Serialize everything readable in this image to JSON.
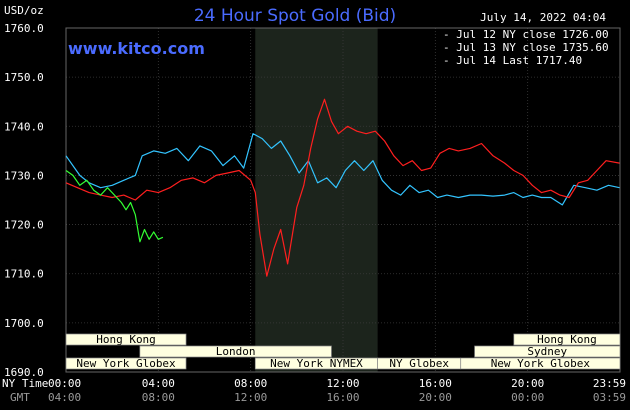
{
  "header": {
    "currency": "USD/oz",
    "title": "24 Hour Spot Gold (Bid)",
    "timestamp": "July 14, 2022 04:04",
    "brand": "www.kitco.com"
  },
  "time_labels": {
    "ny_time_label": "NY Time",
    "gmt_label": "GMT",
    "ny": [
      "00:00",
      "04:00",
      "08:00",
      "12:00",
      "16:00",
      "20:00",
      "23:59"
    ],
    "gmt": [
      "04:00",
      "08:00",
      "12:00",
      "16:00",
      "20:00",
      "00:00",
      "03:59"
    ]
  },
  "sessions": [
    {
      "name": "Hong Kong",
      "start": 0,
      "end": 5.2,
      "row": 0
    },
    {
      "name": "Hong Kong",
      "start": 19.4,
      "end": 24,
      "row": 0
    },
    {
      "name": "London",
      "start": 3.2,
      "end": 11.5,
      "row": 1
    },
    {
      "name": "Sydney",
      "start": 17.7,
      "end": 24,
      "row": 1
    },
    {
      "name": "New York Globex",
      "start": 0,
      "end": 5.2,
      "row": 2
    },
    {
      "name": "New York NYMEX",
      "start": 8.2,
      "end": 13.5,
      "row": 2
    },
    {
      "name": "NY Globex",
      "start": 13.5,
      "end": 17.1,
      "row": 2
    },
    {
      "name": "New York Globex",
      "start": 17.1,
      "end": 24,
      "row": 2
    }
  ],
  "colors": {
    "background": "#000000",
    "plot_bg": "#000000",
    "shade": "#1c241c",
    "grid": "#3a3a3a",
    "jul12": "#33c4ff",
    "jul13": "#ff1f1f",
    "jul14": "#33ff33",
    "title": "#4a6bff"
  },
  "chart_data": {
    "type": "line",
    "title": "24 Hour Spot Gold (Bid)",
    "ylabel": "USD/oz",
    "ylim": [
      1690,
      1760
    ],
    "yticks": [
      "1760.0",
      "1750.0",
      "1740.0",
      "1730.0",
      "1720.0",
      "1710.0",
      "1700.0",
      "1690.0"
    ],
    "xlim": [
      0,
      24
    ],
    "x_unit": "hours since 00:00 NY Time",
    "grid": true,
    "shaded_hours": [
      8.2,
      13.5
    ],
    "legend": [
      {
        "label": "Jul 12 NY close 1726.00",
        "color": "#33c4ff"
      },
      {
        "label": "Jul 13 NY close 1735.60",
        "color": "#ff1f1f"
      },
      {
        "label": "Jul 14 Last 1717.40",
        "color": "#33ff33"
      }
    ],
    "series": [
      {
        "name": "Jul 12",
        "color": "#33c4ff",
        "x": [
          0,
          0.3,
          0.6,
          1.0,
          1.5,
          2.0,
          2.5,
          3.0,
          3.3,
          3.8,
          4.3,
          4.8,
          5.3,
          5.8,
          6.3,
          6.8,
          7.3,
          7.7,
          8.1,
          8.5,
          8.9,
          9.3,
          9.7,
          10.1,
          10.5,
          10.9,
          11.3,
          11.7,
          12.1,
          12.5,
          12.9,
          13.3,
          13.7,
          14.1,
          14.5,
          14.9,
          15.3,
          15.7,
          16.1,
          16.5,
          17.0,
          17.5,
          18.0,
          18.5,
          19.0,
          19.4,
          19.8,
          20.2,
          20.6,
          21.0,
          21.5,
          22.0,
          22.5,
          23.0,
          23.5,
          23.98
        ],
        "y": [
          1734.0,
          1732.0,
          1730.0,
          1728.5,
          1727.5,
          1728.0,
          1729.0,
          1730.0,
          1734.0,
          1735.0,
          1734.5,
          1735.5,
          1733.0,
          1736.0,
          1735.0,
          1732.0,
          1734.0,
          1731.5,
          1738.5,
          1737.5,
          1735.5,
          1737.0,
          1734.0,
          1730.5,
          1733.0,
          1728.5,
          1729.5,
          1727.5,
          1731.0,
          1733.0,
          1731.0,
          1733.0,
          1729.0,
          1727.0,
          1726.0,
          1728.0,
          1726.5,
          1727.0,
          1725.5,
          1726.0,
          1725.5,
          1726.0,
          1726.0,
          1725.8,
          1726.0,
          1726.5,
          1725.5,
          1726.0,
          1725.5,
          1725.5,
          1724.0,
          1728.0,
          1727.5,
          1727.0,
          1728.0,
          1727.5
        ]
      },
      {
        "name": "Jul 13",
        "color": "#ff1f1f",
        "x": [
          0,
          0.5,
          1.0,
          1.5,
          2.0,
          2.5,
          3.0,
          3.5,
          4.0,
          4.5,
          5.0,
          5.5,
          6.0,
          6.5,
          7.0,
          7.5,
          8.0,
          8.2,
          8.4,
          8.7,
          9.0,
          9.3,
          9.6,
          10.0,
          10.3,
          10.6,
          10.9,
          11.2,
          11.5,
          11.8,
          12.2,
          12.6,
          13.0,
          13.4,
          13.8,
          14.2,
          14.6,
          15.0,
          15.4,
          15.8,
          16.2,
          16.6,
          17.0,
          17.5,
          18.0,
          18.5,
          19.0,
          19.4,
          19.8,
          20.2,
          20.6,
          21.0,
          21.4,
          21.8,
          22.2,
          22.6,
          23.0,
          23.4,
          23.98
        ],
        "y": [
          1728.5,
          1727.5,
          1726.5,
          1726.0,
          1725.5,
          1726.0,
          1725.0,
          1727.0,
          1726.5,
          1727.5,
          1729.0,
          1729.5,
          1728.5,
          1730.0,
          1730.5,
          1731.0,
          1729.0,
          1726.5,
          1718.0,
          1709.5,
          1715.0,
          1719.0,
          1712.0,
          1723.5,
          1728.0,
          1735.5,
          1741.5,
          1745.5,
          1741.0,
          1738.5,
          1740.0,
          1739.0,
          1738.5,
          1739.0,
          1737.0,
          1734.0,
          1732.0,
          1733.0,
          1731.0,
          1731.5,
          1734.5,
          1735.5,
          1735.0,
          1735.5,
          1736.5,
          1734.0,
          1732.5,
          1731.0,
          1730.0,
          1728.0,
          1726.5,
          1727.0,
          1726.0,
          1725.5,
          1728.5,
          1729.0,
          1731.0,
          1733.0,
          1732.5
        ]
      },
      {
        "name": "Jul 14",
        "color": "#33ff33",
        "x": [
          0,
          0.3,
          0.6,
          0.9,
          1.2,
          1.5,
          1.8,
          2.1,
          2.4,
          2.6,
          2.8,
          3.0,
          3.2,
          3.4,
          3.6,
          3.8,
          4.0,
          4.2
        ],
        "y": [
          1731.0,
          1730.0,
          1728.0,
          1729.0,
          1727.0,
          1726.0,
          1727.5,
          1726.0,
          1724.5,
          1723.0,
          1724.5,
          1722.0,
          1716.5,
          1719.0,
          1717.0,
          1718.5,
          1717.0,
          1717.4
        ]
      }
    ]
  }
}
